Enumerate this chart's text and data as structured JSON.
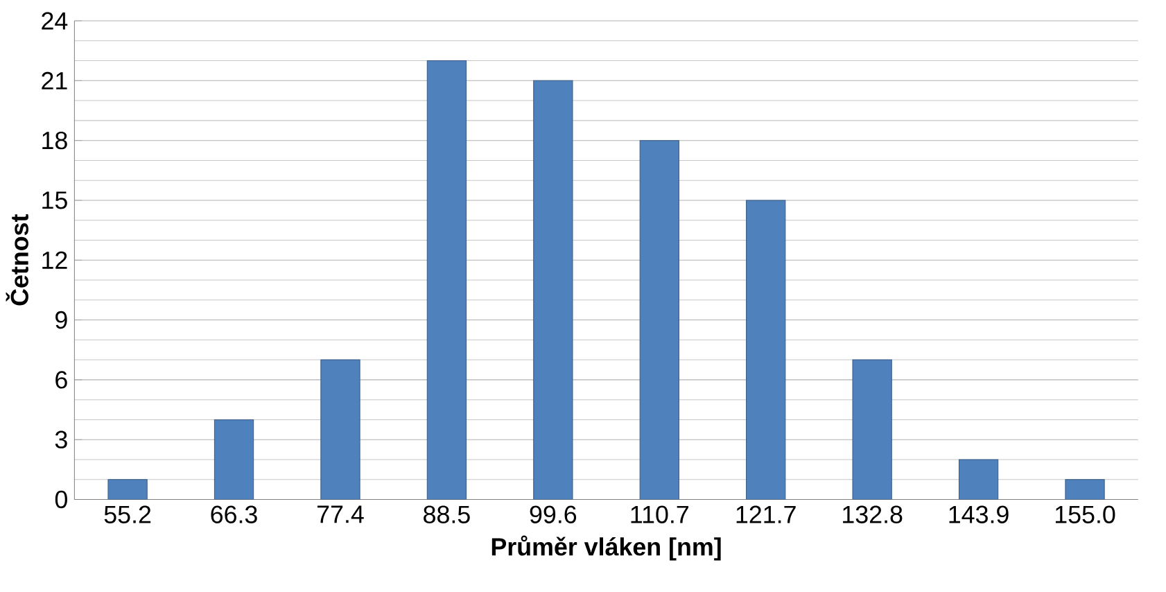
{
  "chart_data": {
    "type": "bar",
    "xlabel": "Průměr vláken [nm]",
    "ylabel": "Četnost",
    "categories": [
      "55.2",
      "66.3",
      "77.4",
      "88.5",
      "99.6",
      "110.7",
      "121.7",
      "132.8",
      "143.9",
      "155.0"
    ],
    "values": [
      1,
      4,
      7,
      22,
      21,
      18,
      15,
      7,
      2,
      1
    ],
    "color": "#4f81bd",
    "ylim": [
      0,
      24
    ],
    "yticks": [
      0,
      3,
      6,
      9,
      12,
      15,
      18,
      21,
      24
    ],
    "grid": "y"
  }
}
